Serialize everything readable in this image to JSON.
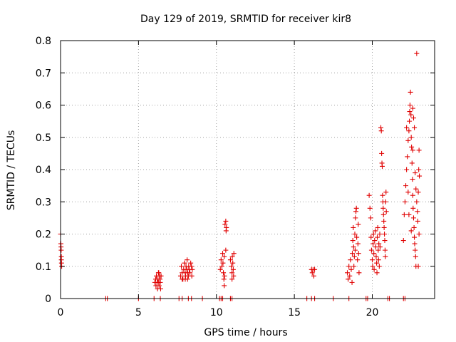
{
  "chart_data": {
    "type": "scatter",
    "title": "Day 129 of 2019, SRMTID for receiver kir8",
    "xlabel": "GPS time / hours",
    "ylabel": "SRMTID / TECUs",
    "xlim": [
      0,
      24
    ],
    "ylim": [
      0,
      0.8
    ],
    "x_ticks": [
      0,
      5,
      10,
      15,
      20
    ],
    "x_tick_labels": [
      "0",
      "5",
      "10",
      "15",
      "20"
    ],
    "y_ticks": [
      0,
      0.1,
      0.2,
      0.3,
      0.4,
      0.5,
      0.6,
      0.7,
      0.8
    ],
    "y_tick_labels": [
      "0",
      "0.1",
      "0.2",
      "0.3",
      "0.4",
      "0.5",
      "0.6",
      "0.7",
      "0.8"
    ],
    "grid": true,
    "marker": "plus",
    "series": [
      {
        "name": "SRMTID",
        "color": "#e00000",
        "points": [
          [
            0.0,
            0.2
          ],
          [
            0.02,
            0.17
          ],
          [
            0.03,
            0.16
          ],
          [
            0.04,
            0.15
          ],
          [
            0.05,
            0.13
          ],
          [
            0.05,
            0.12
          ],
          [
            0.06,
            0.11
          ],
          [
            0.07,
            0.1
          ],
          [
            2.9,
            0.0
          ],
          [
            3.0,
            0.0
          ],
          [
            5.0,
            0.0
          ],
          [
            6.0,
            0.0
          ],
          [
            6.4,
            0.0
          ],
          [
            7.6,
            0.0
          ],
          [
            7.8,
            0.0
          ],
          [
            8.2,
            0.0
          ],
          [
            8.4,
            0.0
          ],
          [
            9.1,
            0.0
          ],
          [
            10.2,
            0.0
          ],
          [
            10.3,
            0.0
          ],
          [
            10.4,
            0.0
          ],
          [
            10.9,
            0.0
          ],
          [
            11.0,
            0.0
          ],
          [
            15.8,
            0.0
          ],
          [
            16.1,
            0.0
          ],
          [
            16.3,
            0.0
          ],
          [
            17.5,
            0.0
          ],
          [
            18.5,
            0.0
          ],
          [
            19.6,
            0.0
          ],
          [
            19.7,
            0.0
          ],
          [
            21.0,
            0.0
          ],
          [
            21.1,
            0.0
          ],
          [
            22.0,
            0.0
          ],
          [
            22.1,
            0.0
          ],
          [
            6.05,
            0.05
          ],
          [
            6.1,
            0.06
          ],
          [
            6.12,
            0.04
          ],
          [
            6.15,
            0.07
          ],
          [
            6.2,
            0.05
          ],
          [
            6.22,
            0.03
          ],
          [
            6.25,
            0.06
          ],
          [
            6.28,
            0.08
          ],
          [
            6.3,
            0.05
          ],
          [
            6.32,
            0.04
          ],
          [
            6.35,
            0.07
          ],
          [
            6.38,
            0.06
          ],
          [
            6.4,
            0.05
          ],
          [
            6.42,
            0.03
          ],
          [
            6.45,
            0.07
          ],
          [
            6.3,
            0.08
          ],
          [
            7.7,
            0.07
          ],
          [
            7.75,
            0.1
          ],
          [
            7.8,
            0.08
          ],
          [
            7.85,
            0.06
          ],
          [
            7.9,
            0.09
          ],
          [
            7.95,
            0.11
          ],
          [
            8.0,
            0.08
          ],
          [
            8.02,
            0.07
          ],
          [
            8.05,
            0.1
          ],
          [
            8.1,
            0.09
          ],
          [
            8.12,
            0.12
          ],
          [
            8.15,
            0.08
          ],
          [
            8.2,
            0.07
          ],
          [
            8.22,
            0.1
          ],
          [
            8.25,
            0.09
          ],
          [
            8.3,
            0.08
          ],
          [
            8.35,
            0.11
          ],
          [
            8.4,
            0.1
          ],
          [
            8.42,
            0.07
          ],
          [
            8.45,
            0.09
          ],
          [
            7.8,
            0.06
          ],
          [
            8.0,
            0.06
          ],
          [
            8.15,
            0.06
          ],
          [
            10.25,
            0.09
          ],
          [
            10.3,
            0.12
          ],
          [
            10.35,
            0.1
          ],
          [
            10.4,
            0.14
          ],
          [
            10.42,
            0.11
          ],
          [
            10.45,
            0.08
          ],
          [
            10.48,
            0.06
          ],
          [
            10.5,
            0.04
          ],
          [
            10.52,
            0.07
          ],
          [
            10.55,
            0.23
          ],
          [
            10.6,
            0.24
          ],
          [
            10.62,
            0.21
          ],
          [
            10.64,
            0.22
          ],
          [
            10.6,
            0.15
          ],
          [
            10.5,
            0.13
          ],
          [
            10.9,
            0.12
          ],
          [
            10.95,
            0.1
          ],
          [
            11.0,
            0.08
          ],
          [
            11.02,
            0.13
          ],
          [
            11.05,
            0.11
          ],
          [
            11.08,
            0.09
          ],
          [
            11.1,
            0.07
          ],
          [
            11.12,
            0.14
          ],
          [
            11.0,
            0.06
          ],
          [
            16.1,
            0.09
          ],
          [
            16.15,
            0.08
          ],
          [
            16.2,
            0.09
          ],
          [
            16.25,
            0.07
          ],
          [
            16.3,
            0.09
          ],
          [
            18.4,
            0.08
          ],
          [
            18.45,
            0.06
          ],
          [
            18.5,
            0.1
          ],
          [
            18.55,
            0.07
          ],
          [
            18.6,
            0.12
          ],
          [
            18.65,
            0.09
          ],
          [
            18.7,
            0.05
          ],
          [
            18.72,
            0.14
          ],
          [
            18.75,
            0.18
          ],
          [
            18.78,
            0.22
          ],
          [
            18.8,
            0.16
          ],
          [
            18.82,
            0.1
          ],
          [
            18.85,
            0.13
          ],
          [
            18.88,
            0.2
          ],
          [
            18.9,
            0.15
          ],
          [
            18.92,
            0.25
          ],
          [
            18.95,
            0.27
          ],
          [
            18.98,
            0.28
          ],
          [
            19.0,
            0.19
          ],
          [
            19.05,
            0.12
          ],
          [
            19.08,
            0.17
          ],
          [
            19.1,
            0.23
          ],
          [
            19.12,
            0.14
          ],
          [
            19.15,
            0.08
          ],
          [
            19.8,
            0.32
          ],
          [
            19.85,
            0.28
          ],
          [
            19.9,
            0.25
          ],
          [
            19.92,
            0.19
          ],
          [
            19.95,
            0.15
          ],
          [
            20.0,
            0.12
          ],
          [
            20.02,
            0.1
          ],
          [
            20.05,
            0.17
          ],
          [
            20.08,
            0.2
          ],
          [
            20.1,
            0.14
          ],
          [
            20.12,
            0.09
          ],
          [
            20.15,
            0.18
          ],
          [
            20.2,
            0.21
          ],
          [
            20.22,
            0.16
          ],
          [
            20.25,
            0.13
          ],
          [
            20.28,
            0.11
          ],
          [
            20.3,
            0.08
          ],
          [
            20.32,
            0.19
          ],
          [
            20.35,
            0.22
          ],
          [
            20.38,
            0.15
          ],
          [
            20.4,
            0.12
          ],
          [
            20.42,
            0.17
          ],
          [
            20.45,
            0.1
          ],
          [
            20.48,
            0.2
          ],
          [
            20.5,
            0.16
          ],
          [
            20.55,
            0.53
          ],
          [
            20.58,
            0.52
          ],
          [
            20.6,
            0.45
          ],
          [
            20.62,
            0.42
          ],
          [
            20.64,
            0.41
          ],
          [
            20.66,
            0.32
          ],
          [
            20.68,
            0.3
          ],
          [
            20.7,
            0.28
          ],
          [
            20.72,
            0.26
          ],
          [
            20.74,
            0.24
          ],
          [
            20.76,
            0.22
          ],
          [
            20.78,
            0.2
          ],
          [
            20.8,
            0.18
          ],
          [
            20.82,
            0.15
          ],
          [
            20.84,
            0.13
          ],
          [
            20.86,
            0.3
          ],
          [
            20.88,
            0.33
          ],
          [
            20.9,
            0.27
          ],
          [
            22.0,
            0.18
          ],
          [
            22.05,
            0.26
          ],
          [
            22.1,
            0.3
          ],
          [
            22.15,
            0.35
          ],
          [
            22.2,
            0.4
          ],
          [
            22.25,
            0.44
          ],
          [
            22.3,
            0.49
          ],
          [
            22.35,
            0.52
          ],
          [
            22.38,
            0.55
          ],
          [
            22.4,
            0.58
          ],
          [
            22.42,
            0.6
          ],
          [
            22.45,
            0.64
          ],
          [
            22.48,
            0.57
          ],
          [
            22.5,
            0.5
          ],
          [
            22.52,
            0.47
          ],
          [
            22.55,
            0.42
          ],
          [
            22.58,
            0.37
          ],
          [
            22.6,
            0.32
          ],
          [
            22.62,
            0.28
          ],
          [
            22.65,
            0.25
          ],
          [
            22.68,
            0.22
          ],
          [
            22.7,
            0.19
          ],
          [
            22.72,
            0.17
          ],
          [
            22.75,
            0.15
          ],
          [
            22.78,
            0.13
          ],
          [
            22.8,
            0.1
          ],
          [
            22.6,
            0.46
          ],
          [
            22.7,
            0.53
          ],
          [
            22.75,
            0.39
          ],
          [
            22.8,
            0.34
          ],
          [
            22.85,
            0.3
          ],
          [
            22.9,
            0.27
          ],
          [
            22.92,
            0.24
          ],
          [
            22.95,
            0.33
          ],
          [
            22.98,
            0.4
          ],
          [
            23.0,
            0.46
          ],
          [
            23.02,
            0.38
          ],
          [
            23.0,
            0.2
          ],
          [
            22.2,
            0.53
          ],
          [
            22.3,
            0.33
          ],
          [
            22.35,
            0.26
          ],
          [
            22.5,
            0.21
          ],
          [
            22.85,
            0.76
          ],
          [
            22.95,
            0.1
          ],
          [
            22.6,
            0.59
          ],
          [
            22.65,
            0.56
          ]
        ]
      }
    ]
  }
}
